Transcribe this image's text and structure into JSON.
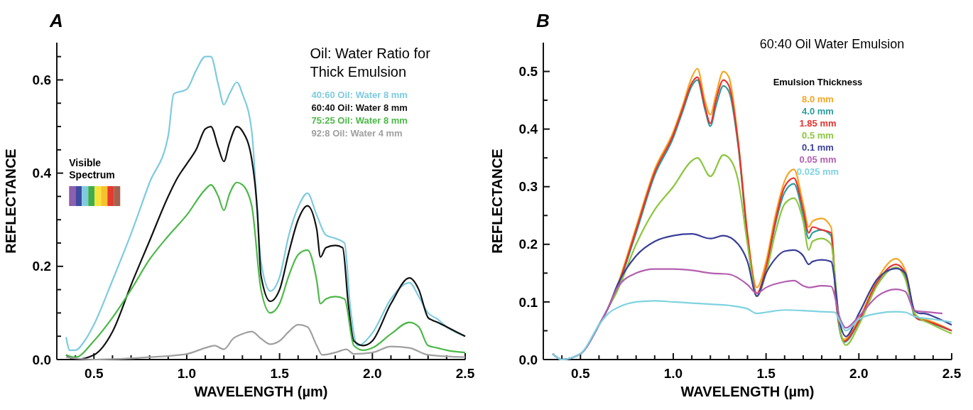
{
  "chart_data": [
    {
      "type": "line",
      "title": "A",
      "xlabel": "WAVELENGTH (µm)",
      "ylabel": "REFLECTANCE",
      "legend_title": "Oil: Water Ratio for Thick Emulsion",
      "legend": "top right",
      "annotations": [
        "Visible Spectrum"
      ],
      "xlim": [
        0.3,
        2.5
      ],
      "ylim": [
        0,
        0.68
      ],
      "xticks": [
        {
          "value": 0.4,
          "label": null
        },
        {
          "value": 0.5,
          "label": "0.5"
        },
        {
          "value": 0.6,
          "label": null
        },
        {
          "value": 0.7,
          "label": null
        },
        {
          "value": 0.8,
          "label": null
        },
        {
          "value": 0.9,
          "label": null
        },
        {
          "value": 1.0,
          "label": "1.0"
        },
        {
          "value": 1.1,
          "label": null
        },
        {
          "value": 1.2,
          "label": null
        },
        {
          "value": 1.3,
          "label": null
        },
        {
          "value": 1.4,
          "label": null
        },
        {
          "value": 1.5,
          "label": "1.5"
        },
        {
          "value": 1.6,
          "label": null
        },
        {
          "value": 1.7,
          "label": null
        },
        {
          "value": 1.8,
          "label": null
        },
        {
          "value": 1.9,
          "label": null
        },
        {
          "value": 2.0,
          "label": "2.0"
        },
        {
          "value": 2.1,
          "label": null
        },
        {
          "value": 2.2,
          "label": null
        },
        {
          "value": 2.3,
          "label": null
        },
        {
          "value": 2.4,
          "label": null
        },
        {
          "value": 2.5,
          "label": "2.5"
        }
      ],
      "yticks": [
        {
          "value": 0,
          "label": "0.0"
        },
        {
          "value": 0.05,
          "label": null
        },
        {
          "value": 0.1,
          "label": null
        },
        {
          "value": 0.15,
          "label": null
        },
        {
          "value": 0.2,
          "label": "0.2"
        },
        {
          "value": 0.25,
          "label": null
        },
        {
          "value": 0.3,
          "label": null
        },
        {
          "value": 0.35,
          "label": null
        },
        {
          "value": 0.4,
          "label": "0.4"
        },
        {
          "value": 0.45,
          "label": null
        },
        {
          "value": 0.5,
          "label": null
        },
        {
          "value": 0.55,
          "label": null
        },
        {
          "value": 0.6,
          "label": "0.6"
        },
        {
          "value": 0.65,
          "label": null
        }
      ],
      "series": [
        {
          "name": "40:60 Oil: Water 8 mm",
          "color": "#7ecbe0",
          "x": [
            0.35,
            0.37,
            0.4,
            0.45,
            0.5,
            0.6,
            0.7,
            0.8,
            0.9,
            0.93,
            1.0,
            1.05,
            1.1,
            1.13,
            1.17,
            1.2,
            1.23,
            1.27,
            1.3,
            1.35,
            1.4,
            1.45,
            1.5,
            1.55,
            1.6,
            1.65,
            1.7,
            1.75,
            1.8,
            1.85,
            1.88,
            1.92,
            2.0,
            2.1,
            2.2,
            2.25,
            2.3,
            2.35,
            2.4,
            2.5
          ],
          "values": [
            0.048,
            0.02,
            0.02,
            0.04,
            0.075,
            0.17,
            0.27,
            0.38,
            0.48,
            0.57,
            0.58,
            0.62,
            0.65,
            0.65,
            0.59,
            0.547,
            0.57,
            0.595,
            0.57,
            0.49,
            0.21,
            0.147,
            0.177,
            0.267,
            0.327,
            0.357,
            0.31,
            0.267,
            0.26,
            0.25,
            0.117,
            0.03,
            0.057,
            0.13,
            0.165,
            0.135,
            0.1,
            0.087,
            0.07,
            0.05
          ]
        },
        {
          "name": "60:40 Oil: Water 8 mm",
          "color": "#111111",
          "x": [
            0.35,
            0.4,
            0.5,
            0.6,
            0.7,
            0.8,
            0.9,
            0.95,
            1.0,
            1.05,
            1.1,
            1.13,
            1.17,
            1.2,
            1.23,
            1.27,
            1.3,
            1.35,
            1.38,
            1.4,
            1.45,
            1.5,
            1.55,
            1.6,
            1.65,
            1.7,
            1.72,
            1.75,
            1.8,
            1.84,
            1.87,
            1.9,
            1.95,
            2.0,
            2.1,
            2.2,
            2.25,
            2.3,
            2.32,
            2.35,
            2.4,
            2.5
          ],
          "values": [
            0.01,
            0.0,
            0.01,
            0.06,
            0.16,
            0.255,
            0.35,
            0.39,
            0.42,
            0.45,
            0.495,
            0.5,
            0.455,
            0.425,
            0.465,
            0.5,
            0.49,
            0.43,
            0.32,
            0.18,
            0.125,
            0.15,
            0.23,
            0.3,
            0.33,
            0.28,
            0.22,
            0.24,
            0.245,
            0.24,
            0.12,
            0.04,
            0.03,
            0.04,
            0.12,
            0.175,
            0.15,
            0.09,
            0.085,
            0.08,
            0.07,
            0.05
          ]
        },
        {
          "name": "75:25 Oil: Water 8 mm",
          "color": "#4cb848",
          "x": [
            0.35,
            0.4,
            0.5,
            0.6,
            0.7,
            0.8,
            0.9,
            1.0,
            1.1,
            1.13,
            1.17,
            1.2,
            1.23,
            1.27,
            1.3,
            1.35,
            1.4,
            1.45,
            1.5,
            1.55,
            1.6,
            1.65,
            1.7,
            1.72,
            1.75,
            1.8,
            1.85,
            1.9,
            1.95,
            2.0,
            2.1,
            2.2,
            2.25,
            2.3,
            2.35,
            2.4,
            2.5
          ],
          "values": [
            0.01,
            0.005,
            0.04,
            0.09,
            0.15,
            0.215,
            0.265,
            0.31,
            0.365,
            0.375,
            0.35,
            0.32,
            0.355,
            0.38,
            0.375,
            0.33,
            0.15,
            0.1,
            0.12,
            0.18,
            0.225,
            0.235,
            0.17,
            0.12,
            0.13,
            0.135,
            0.13,
            0.03,
            0.02,
            0.025,
            0.055,
            0.08,
            0.07,
            0.03,
            0.025,
            0.02,
            0.015
          ]
        },
        {
          "name": "92:8 Oil: Water 4 mm",
          "color": "#a0a0a0",
          "x": [
            0.35,
            0.5,
            0.8,
            1.0,
            1.1,
            1.15,
            1.2,
            1.25,
            1.3,
            1.35,
            1.4,
            1.45,
            1.5,
            1.55,
            1.6,
            1.65,
            1.7,
            1.73,
            1.8,
            1.86,
            1.9,
            2.0,
            2.1,
            2.2,
            2.3,
            2.5
          ],
          "values": [
            0.005,
            0.0,
            0.005,
            0.012,
            0.025,
            0.03,
            0.022,
            0.045,
            0.055,
            0.06,
            0.045,
            0.033,
            0.04,
            0.06,
            0.075,
            0.07,
            0.03,
            0.01,
            0.015,
            0.022,
            0.012,
            0.015,
            0.028,
            0.025,
            0.01,
            0.005
          ]
        }
      ]
    },
    {
      "type": "line",
      "title": "B",
      "subtitle": "60:40 Oil Water Emulsion",
      "xlabel": "WAVELENGTH (µm)",
      "ylabel": "REFLECTANCE",
      "legend_title": "Emulsion Thickness",
      "legend": "top right",
      "xlim": [
        0.3,
        2.5
      ],
      "ylim": [
        0,
        0.55
      ],
      "xticks": [
        {
          "value": 0.4,
          "label": null
        },
        {
          "value": 0.5,
          "label": "0.5"
        },
        {
          "value": 0.6,
          "label": null
        },
        {
          "value": 0.7,
          "label": null
        },
        {
          "value": 0.8,
          "label": null
        },
        {
          "value": 0.9,
          "label": null
        },
        {
          "value": 1.0,
          "label": "1.0"
        },
        {
          "value": 1.1,
          "label": null
        },
        {
          "value": 1.2,
          "label": null
        },
        {
          "value": 1.3,
          "label": null
        },
        {
          "value": 1.4,
          "label": null
        },
        {
          "value": 1.5,
          "label": "1.5"
        },
        {
          "value": 1.6,
          "label": null
        },
        {
          "value": 1.7,
          "label": null
        },
        {
          "value": 1.8,
          "label": null
        },
        {
          "value": 1.9,
          "label": null
        },
        {
          "value": 2.0,
          "label": "2.0"
        },
        {
          "value": 2.1,
          "label": null
        },
        {
          "value": 2.2,
          "label": null
        },
        {
          "value": 2.3,
          "label": null
        },
        {
          "value": 2.4,
          "label": null
        },
        {
          "value": 2.5,
          "label": "2.5"
        }
      ],
      "yticks": [
        {
          "value": 0,
          "label": "0.0"
        },
        {
          "value": 0.05,
          "label": null
        },
        {
          "value": 0.1,
          "label": "0.1"
        },
        {
          "value": 0.15,
          "label": null
        },
        {
          "value": 0.2,
          "label": "0.2"
        },
        {
          "value": 0.25,
          "label": null
        },
        {
          "value": 0.3,
          "label": "0.3"
        },
        {
          "value": 0.35,
          "label": null
        },
        {
          "value": 0.4,
          "label": "0.4"
        },
        {
          "value": 0.45,
          "label": null
        },
        {
          "value": 0.5,
          "label": "0.5"
        }
      ],
      "series": [
        {
          "name": "8.0 mm",
          "color": "#f5a623",
          "x": [
            0.65,
            0.7,
            0.8,
            0.9,
            1.0,
            1.05,
            1.1,
            1.13,
            1.17,
            1.2,
            1.23,
            1.27,
            1.3,
            1.35,
            1.4,
            1.45,
            1.5,
            1.55,
            1.6,
            1.65,
            1.7,
            1.73,
            1.75,
            1.8,
            1.85,
            1.88,
            1.92,
            2.0,
            2.1,
            2.2,
            2.25,
            2.3,
            2.32,
            2.35,
            2.4,
            2.5
          ],
          "values": [
            0.09,
            0.13,
            0.23,
            0.33,
            0.395,
            0.44,
            0.49,
            0.505,
            0.45,
            0.425,
            0.46,
            0.5,
            0.49,
            0.38,
            0.22,
            0.125,
            0.17,
            0.25,
            0.31,
            0.33,
            0.27,
            0.23,
            0.24,
            0.245,
            0.23,
            0.1,
            0.035,
            0.07,
            0.14,
            0.175,
            0.155,
            0.08,
            0.07,
            0.07,
            0.065,
            0.05
          ]
        },
        {
          "name": "4.0 mm",
          "color": "#2a9d9f",
          "x": [
            0.35,
            0.4,
            0.5,
            0.6,
            0.65,
            0.7,
            0.8,
            0.9,
            1.0,
            1.05,
            1.1,
            1.13,
            1.17,
            1.2,
            1.23,
            1.27,
            1.3,
            1.35,
            1.4,
            1.45,
            1.5,
            1.55,
            1.6,
            1.65,
            1.7,
            1.73,
            1.75,
            1.8,
            1.85,
            1.88,
            1.92,
            2.0,
            2.1,
            2.2,
            2.25,
            2.3,
            2.32,
            2.35,
            2.4,
            2.5
          ],
          "values": [
            0.01,
            0.0,
            0.01,
            0.06,
            0.09,
            0.125,
            0.22,
            0.32,
            0.385,
            0.43,
            0.475,
            0.485,
            0.435,
            0.405,
            0.44,
            0.475,
            0.465,
            0.37,
            0.21,
            0.11,
            0.155,
            0.235,
            0.29,
            0.305,
            0.25,
            0.21,
            0.22,
            0.225,
            0.215,
            0.09,
            0.03,
            0.065,
            0.13,
            0.16,
            0.145,
            0.075,
            0.07,
            0.068,
            0.062,
            0.05
          ]
        },
        {
          "name": "1.85 mm",
          "color": "#e8312f",
          "x": [
            0.65,
            0.7,
            0.8,
            0.9,
            1.0,
            1.05,
            1.1,
            1.13,
            1.17,
            1.2,
            1.23,
            1.27,
            1.3,
            1.35,
            1.4,
            1.45,
            1.5,
            1.55,
            1.6,
            1.65,
            1.7,
            1.73,
            1.75,
            1.8,
            1.85,
            1.88,
            1.92,
            2.0,
            2.1,
            2.2,
            2.25,
            2.3,
            2.32,
            2.35,
            2.4,
            2.5
          ],
          "values": [
            0.09,
            0.127,
            0.225,
            0.325,
            0.39,
            0.435,
            0.48,
            0.49,
            0.44,
            0.41,
            0.45,
            0.485,
            0.475,
            0.375,
            0.215,
            0.115,
            0.16,
            0.24,
            0.3,
            0.315,
            0.26,
            0.22,
            0.23,
            0.225,
            0.22,
            0.095,
            0.032,
            0.067,
            0.135,
            0.165,
            0.15,
            0.078,
            0.07,
            0.068,
            0.063,
            0.05
          ]
        },
        {
          "name": "0.5 mm",
          "color": "#8cc63f",
          "x": [
            0.65,
            0.7,
            0.8,
            0.9,
            1.0,
            1.1,
            1.13,
            1.2,
            1.27,
            1.3,
            1.35,
            1.4,
            1.45,
            1.5,
            1.55,
            1.6,
            1.65,
            1.7,
            1.73,
            1.75,
            1.8,
            1.85,
            1.9,
            1.93,
            2.0,
            2.1,
            2.2,
            2.25,
            2.3,
            2.4,
            2.5
          ],
          "values": [
            0.09,
            0.12,
            0.2,
            0.26,
            0.3,
            0.345,
            0.35,
            0.318,
            0.355,
            0.35,
            0.31,
            0.2,
            0.11,
            0.15,
            0.22,
            0.27,
            0.28,
            0.24,
            0.19,
            0.205,
            0.21,
            0.2,
            0.05,
            0.025,
            0.06,
            0.13,
            0.16,
            0.14,
            0.08,
            0.06,
            0.045
          ]
        },
        {
          "name": "0.1 mm",
          "color": "#3a3f98",
          "x": [
            0.35,
            0.4,
            0.5,
            0.6,
            0.65,
            0.7,
            0.8,
            0.9,
            1.0,
            1.1,
            1.2,
            1.27,
            1.35,
            1.4,
            1.45,
            1.5,
            1.55,
            1.6,
            1.65,
            1.7,
            1.73,
            1.75,
            1.8,
            1.85,
            1.9,
            1.93,
            2.0,
            2.1,
            2.2,
            2.25,
            2.3,
            2.33,
            2.35,
            2.4,
            2.5
          ],
          "values": [
            0.01,
            0.0,
            0.01,
            0.06,
            0.09,
            0.13,
            0.18,
            0.205,
            0.215,
            0.218,
            0.21,
            0.215,
            0.2,
            0.17,
            0.11,
            0.15,
            0.175,
            0.188,
            0.19,
            0.18,
            0.165,
            0.17,
            0.173,
            0.17,
            0.06,
            0.04,
            0.08,
            0.14,
            0.158,
            0.15,
            0.085,
            0.08,
            0.08,
            0.075,
            0.06
          ]
        },
        {
          "name": "0.05 mm",
          "color": "#b35fb0",
          "x": [
            0.35,
            0.4,
            0.5,
            0.6,
            0.65,
            0.7,
            0.8,
            0.9,
            1.0,
            1.1,
            1.2,
            1.3,
            1.4,
            1.45,
            1.5,
            1.6,
            1.65,
            1.7,
            1.73,
            1.8,
            1.85,
            1.9,
            1.93,
            2.0,
            2.1,
            2.2,
            2.25,
            2.3,
            2.35,
            2.45
          ],
          "values": [
            0.01,
            0.0,
            0.01,
            0.06,
            0.09,
            0.125,
            0.15,
            0.157,
            0.157,
            0.155,
            0.15,
            0.148,
            0.13,
            0.115,
            0.125,
            0.135,
            0.137,
            0.128,
            0.125,
            0.128,
            0.127,
            0.07,
            0.055,
            0.075,
            0.11,
            0.122,
            0.118,
            0.085,
            0.083,
            0.08
          ]
        },
        {
          "name": "0.025 mm",
          "color": "#7fd3e0",
          "x": [
            0.35,
            0.4,
            0.5,
            0.6,
            0.65,
            0.7,
            0.8,
            0.9,
            1.0,
            1.1,
            1.2,
            1.3,
            1.4,
            1.45,
            1.5,
            1.6,
            1.7,
            1.8,
            1.87,
            1.9,
            1.93,
            2.0,
            2.1,
            2.2,
            2.25,
            2.3,
            2.4,
            2.5
          ],
          "values": [
            0.01,
            0.0,
            0.01,
            0.06,
            0.08,
            0.09,
            0.1,
            0.102,
            0.1,
            0.098,
            0.096,
            0.094,
            0.088,
            0.08,
            0.082,
            0.086,
            0.085,
            0.083,
            0.082,
            0.065,
            0.05,
            0.07,
            0.08,
            0.083,
            0.082,
            0.075,
            0.07,
            0.065
          ]
        }
      ]
    }
  ]
}
